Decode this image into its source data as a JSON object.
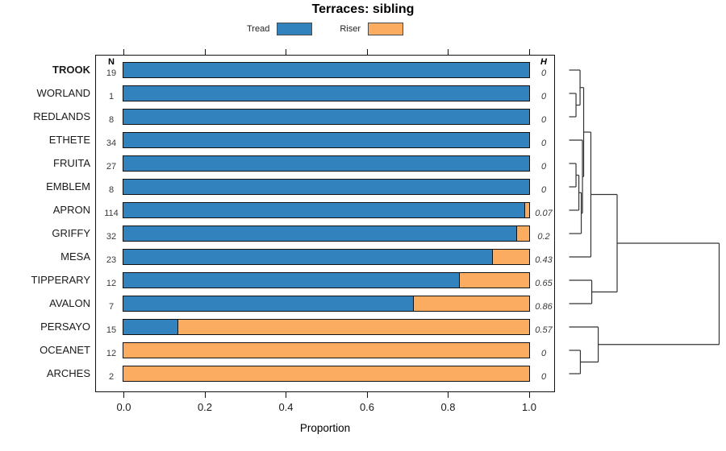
{
  "chart_data": {
    "type": "bar",
    "orientation": "horizontal_stacked",
    "title": "Terraces: sibling",
    "xlabel": "Proportion",
    "xlim": [
      0,
      1
    ],
    "x_ticks": [
      0,
      0.2,
      0.4,
      0.6,
      0.8,
      1.0
    ],
    "x_tick_labels": [
      "0.0",
      "0.2",
      "0.4",
      "0.6",
      "0.8",
      "1.0"
    ],
    "grid": false,
    "legend_position": "top",
    "legend": [
      {
        "label": "Tread",
        "color": "#3182BD"
      },
      {
        "label": "Riser",
        "color": "#FBAC61"
      }
    ],
    "columns": {
      "n": "N",
      "h": "H"
    },
    "categories": [
      "TROOK",
      "WORLAND",
      "REDLANDS",
      "ETHETE",
      "FRUITA",
      "EMBLEM",
      "APRON",
      "GRIFFY",
      "MESA",
      "TIPPERARY",
      "AVALON",
      "PERSAYO",
      "OCEANET",
      "ARCHES"
    ],
    "emphasized_category": "TROOK",
    "series": [
      {
        "name": "Tread",
        "values": [
          1,
          1,
          1,
          1,
          1,
          1,
          0.99,
          0.97,
          0.91,
          0.83,
          0.715,
          0.135,
          0,
          0
        ]
      },
      {
        "name": "Riser",
        "values": [
          0,
          0,
          0,
          0,
          0,
          0,
          0.01,
          0.03,
          0.09,
          0.17,
          0.285,
          0.865,
          1,
          1
        ]
      }
    ],
    "n_values": [
      19,
      1,
      8,
      34,
      27,
      8,
      114,
      32,
      23,
      12,
      7,
      15,
      12,
      2
    ],
    "h_values": [
      "0",
      "0",
      "0",
      "0",
      "0",
      "0",
      "0.07",
      "0.2",
      "0.43",
      "0.65",
      "0.86",
      "0.57",
      "0",
      "0"
    ],
    "dendrogram": {
      "stroke": "#333333",
      "merges": [
        {
          "id": "m1",
          "a": "WORLAND",
          "b": "REDLANDS",
          "h": 0.046
        },
        {
          "id": "m2",
          "a": "TROOK",
          "b": "m1",
          "h": 0.073
        },
        {
          "id": "m3",
          "a": "FRUITA",
          "b": "EMBLEM",
          "h": 0.046
        },
        {
          "id": "m4",
          "a": "m3",
          "b": "APRON",
          "h": 0.065
        },
        {
          "id": "m5",
          "a": "m4",
          "b": "GRIFFY",
          "h": 0.081
        },
        {
          "id": "m6",
          "a": "ETHETE",
          "b": "m5",
          "h": 0.089
        },
        {
          "id": "m7",
          "a": "m2",
          "b": "m6",
          "h": 0.097
        },
        {
          "id": "m8",
          "a": "m7",
          "b": "MESA",
          "h": 0.145
        },
        {
          "id": "m9",
          "a": "TIPPERARY",
          "b": "AVALON",
          "h": 0.151
        },
        {
          "id": "m10",
          "a": "m8",
          "b": "m9",
          "h": 0.32
        },
        {
          "id": "m11",
          "a": "OCEANET",
          "b": "ARCHES",
          "h": 0.075
        },
        {
          "id": "m12",
          "a": "PERSAYO",
          "b": "m11",
          "h": 0.194
        },
        {
          "id": "m13",
          "a": "m10",
          "b": "m12",
          "h": 1.0
        }
      ]
    }
  }
}
